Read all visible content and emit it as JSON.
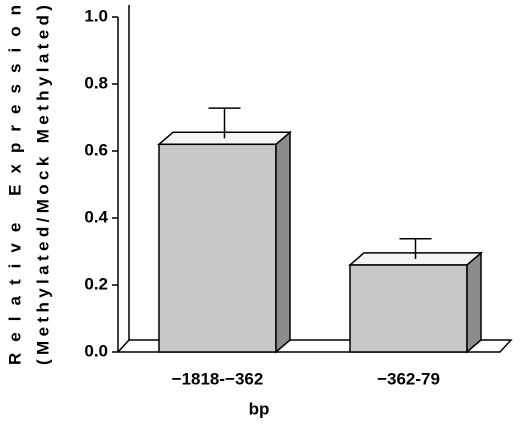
{
  "chart_data": {
    "type": "bar3d",
    "ylabel": [
      "Relative Expression",
      "(Methylated/Mock Methylated)"
    ],
    "xlabel": "bp",
    "categories": [
      "−1818-−362",
      "−362-79"
    ],
    "values": [
      0.62,
      0.26
    ],
    "errors": [
      0.09,
      0.06
    ],
    "color": "#c8c8c8",
    "ylim": [
      0,
      1
    ],
    "yticks": [
      {
        "value": 0,
        "label": "0.0"
      },
      0.2,
      0.4,
      0.6,
      0.8,
      {
        "value": 1,
        "label": "1.0"
      }
    ]
  }
}
